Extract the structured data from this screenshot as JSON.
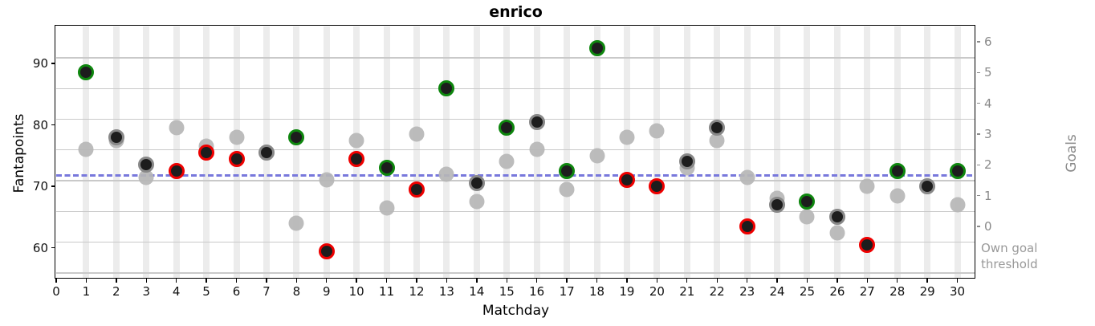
{
  "chart_data": {
    "type": "scatter",
    "title": "enrico",
    "xlabel": "Matchday",
    "ylabel_left": "Fantapoints",
    "ylabel_right": "Goals",
    "own_goal_label_line1": "Own goal",
    "own_goal_label_line2": "threshold",
    "xlim": [
      0,
      30.6
    ],
    "ylim": [
      55,
      96
    ],
    "x_ticks": [
      0,
      1,
      2,
      3,
      4,
      5,
      6,
      7,
      8,
      9,
      10,
      11,
      12,
      13,
      14,
      15,
      16,
      17,
      18,
      19,
      20,
      21,
      22,
      23,
      24,
      25,
      26,
      27,
      28,
      29,
      30
    ],
    "y_ticks_left": [
      60,
      70,
      80,
      90
    ],
    "grid": "on",
    "goal_threshold_gridlines_fantapoints": [
      56,
      61,
      66,
      71,
      76,
      81,
      86,
      91
    ],
    "goal_labels_right": [
      {
        "goal": "6",
        "fantapoints_center": 93.5
      },
      {
        "goal": "5",
        "fantapoints_center": 88.5
      },
      {
        "goal": "4",
        "fantapoints_center": 83.5
      },
      {
        "goal": "3",
        "fantapoints_center": 78.5
      },
      {
        "goal": "2",
        "fantapoints_center": 73.5
      },
      {
        "goal": "1",
        "fantapoints_center": 68.5
      },
      {
        "goal": "0",
        "fantapoints_center": 63.5
      }
    ],
    "own_goal_label_center_fantapoints": 58.4,
    "reference_line": {
      "value": 71.8,
      "style": "dashed",
      "color": "#7878dc"
    },
    "series": [
      {
        "name": "fantapoints",
        "marker": "large dot, dark fill, edge colored by result"
      },
      {
        "name": "gray_dots",
        "marker": "plain gray dot"
      }
    ],
    "matchdays": [
      {
        "day": 1,
        "fantapoints": 88.5,
        "gray": 76.0,
        "edge": "green"
      },
      {
        "day": 2,
        "fantapoints": 78.0,
        "gray": 77.5,
        "edge": "gray"
      },
      {
        "day": 3,
        "fantapoints": 73.5,
        "gray": 71.5,
        "edge": "gray"
      },
      {
        "day": 4,
        "fantapoints": 72.5,
        "gray": 79.5,
        "edge": "red"
      },
      {
        "day": 5,
        "fantapoints": 75.5,
        "gray": 76.5,
        "edge": "red"
      },
      {
        "day": 6,
        "fantapoints": 74.5,
        "gray": 78.0,
        "edge": "red"
      },
      {
        "day": 7,
        "fantapoints": 75.5,
        "gray": 75.5,
        "edge": "gray"
      },
      {
        "day": 8,
        "fantapoints": 78.0,
        "gray": 64.0,
        "edge": "green"
      },
      {
        "day": 9,
        "fantapoints": 59.5,
        "gray": 71.0,
        "edge": "red"
      },
      {
        "day": 10,
        "fantapoints": 74.5,
        "gray": 77.5,
        "edge": "red"
      },
      {
        "day": 11,
        "fantapoints": 73.0,
        "gray": 66.5,
        "edge": "green"
      },
      {
        "day": 12,
        "fantapoints": 69.5,
        "gray": 78.5,
        "edge": "red"
      },
      {
        "day": 13,
        "fantapoints": 86.0,
        "gray": 72.0,
        "edge": "green"
      },
      {
        "day": 14,
        "fantapoints": 70.5,
        "gray": 67.5,
        "edge": "gray"
      },
      {
        "day": 15,
        "fantapoints": 79.5,
        "gray": 74.0,
        "edge": "green"
      },
      {
        "day": 16,
        "fantapoints": 80.5,
        "gray": 76.0,
        "edge": "gray"
      },
      {
        "day": 17,
        "fantapoints": 72.5,
        "gray": 69.5,
        "edge": "green"
      },
      {
        "day": 18,
        "fantapoints": 92.5,
        "gray": 75.0,
        "edge": "green"
      },
      {
        "day": 19,
        "fantapoints": 71.0,
        "gray": 78.0,
        "edge": "red"
      },
      {
        "day": 20,
        "fantapoints": 70.0,
        "gray": 79.0,
        "edge": "red"
      },
      {
        "day": 21,
        "fantapoints": 74.0,
        "gray": 73.0,
        "edge": "gray"
      },
      {
        "day": 22,
        "fantapoints": 79.5,
        "gray": 77.5,
        "edge": "gray"
      },
      {
        "day": 23,
        "fantapoints": 63.5,
        "gray": 71.5,
        "edge": "red"
      },
      {
        "day": 24,
        "fantapoints": 67.0,
        "gray": 68.0,
        "edge": "gray"
      },
      {
        "day": 25,
        "fantapoints": 67.5,
        "gray": 65.0,
        "edge": "green"
      },
      {
        "day": 26,
        "fantapoints": 65.0,
        "gray": 62.5,
        "edge": "gray"
      },
      {
        "day": 27,
        "fantapoints": 60.5,
        "gray": 70.0,
        "edge": "red"
      },
      {
        "day": 28,
        "fantapoints": 72.5,
        "gray": 68.5,
        "edge": "green"
      },
      {
        "day": 29,
        "fantapoints": 70.0,
        "gray": 70.0,
        "edge": "gray"
      },
      {
        "day": 30,
        "fantapoints": 72.5,
        "gray": 67.0,
        "edge": "green"
      }
    ],
    "colors": {
      "edge_green": "#0e860e",
      "edge_red": "#ee0000",
      "edge_gray": "#888888",
      "dot_fill": "#1d1d1d",
      "gray_dot": "#b6b6b6",
      "band": "#ececec",
      "gridline": "#c9c9c9",
      "right_axis_text": "#8a8a8a",
      "reference_line": "#7878dc"
    },
    "legend_position": "none"
  }
}
